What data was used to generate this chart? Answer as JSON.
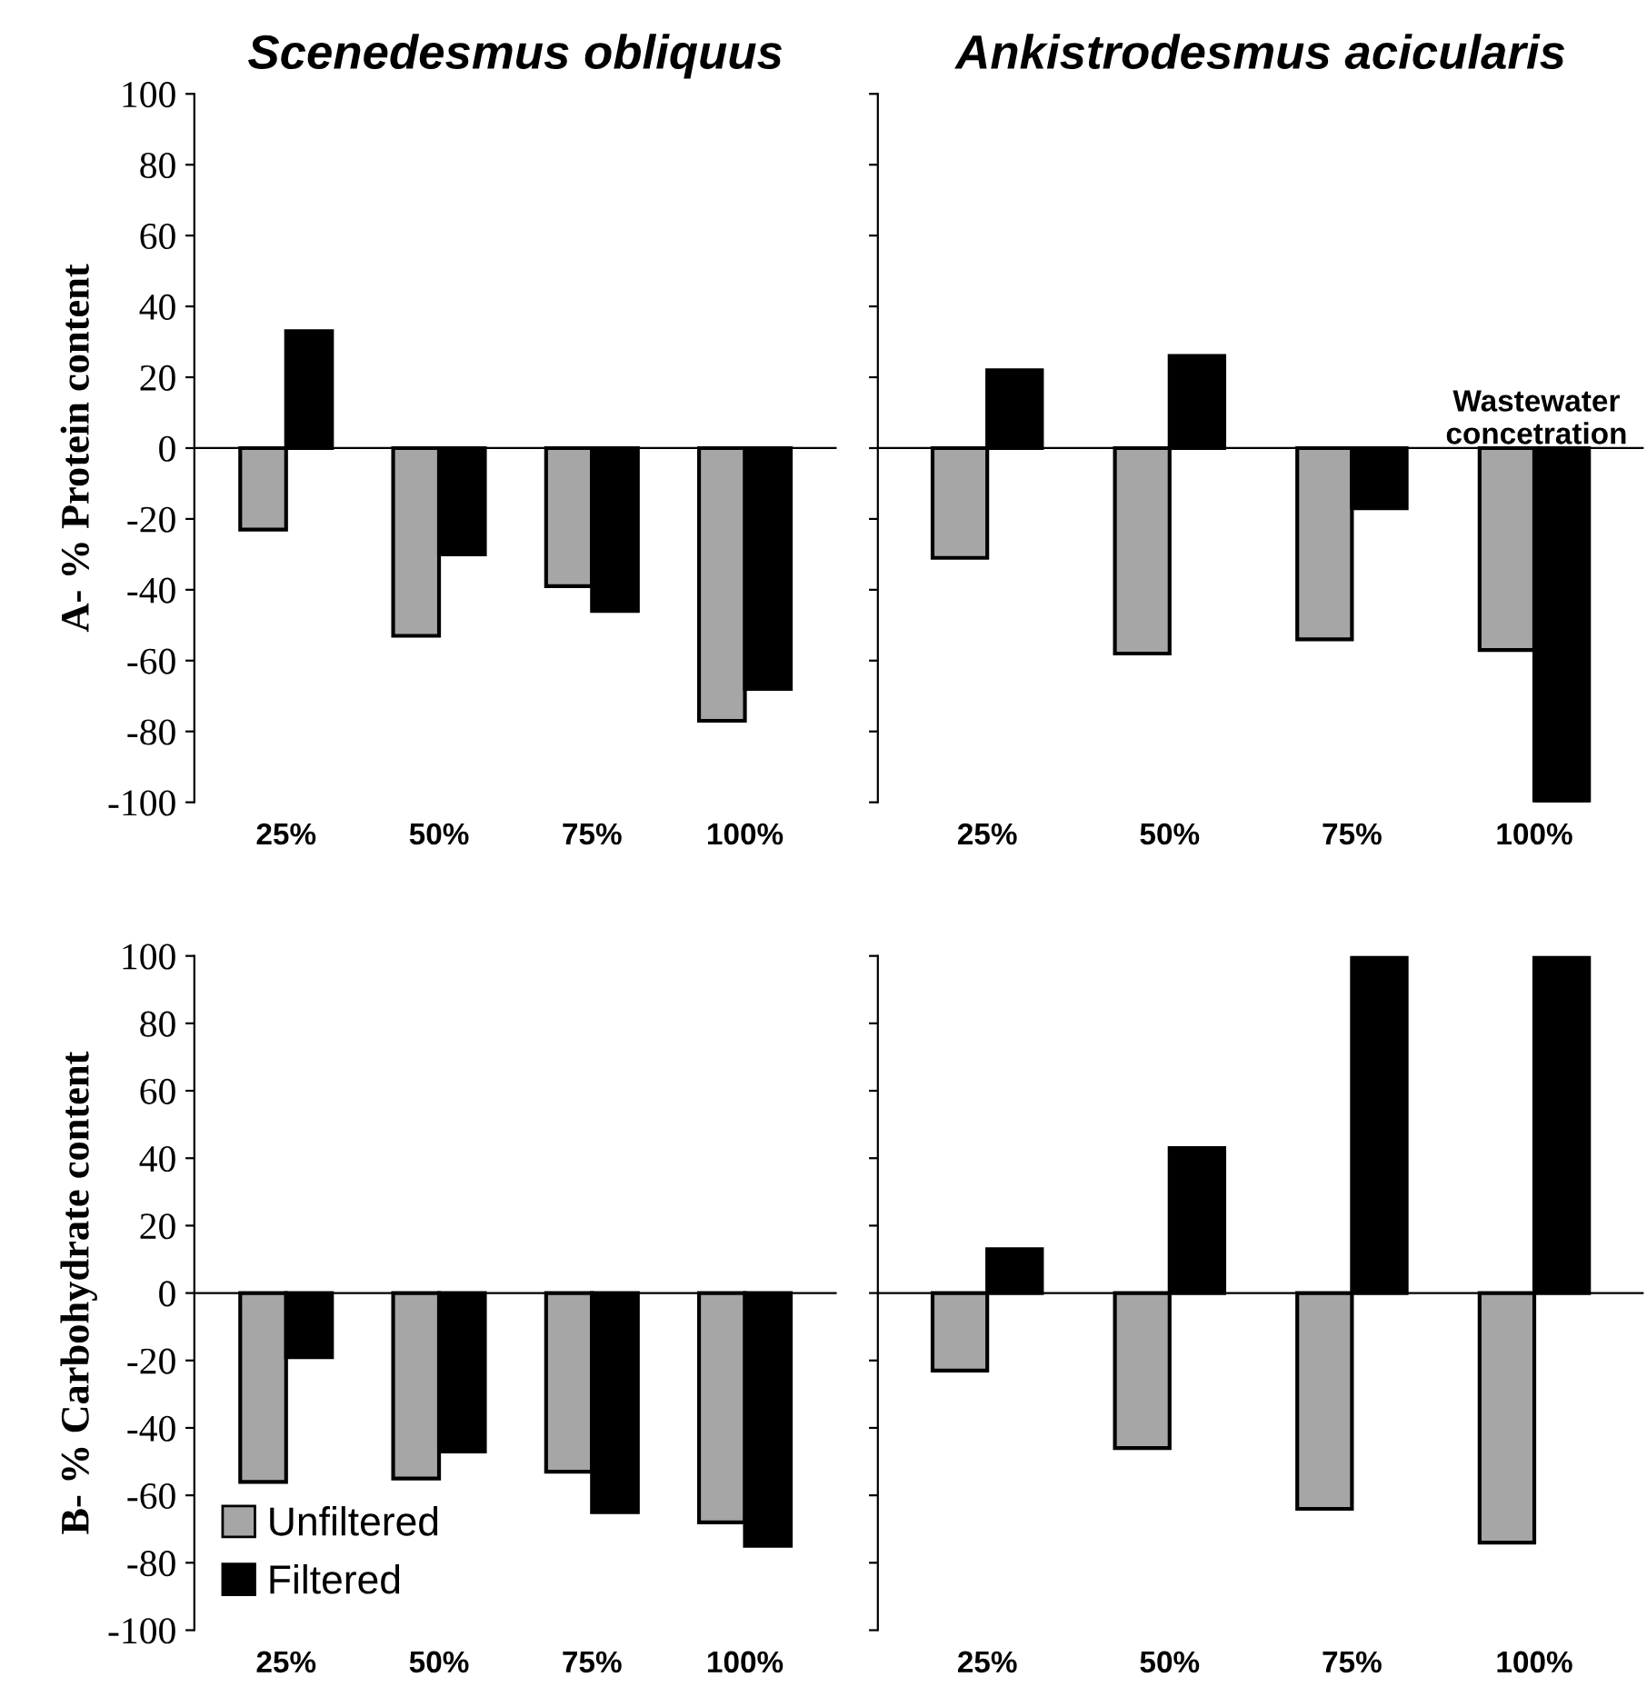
{
  "chart_data": [
    {
      "type": "bar",
      "title": "Scenedesmus obliquus",
      "ylabel": "A- % Protein content",
      "categories": [
        "25%",
        "50%",
        "75%",
        "100%"
      ],
      "ylim": [
        -100,
        100
      ],
      "yticks": [
        -100,
        -80,
        -60,
        -40,
        -20,
        0,
        20,
        40,
        60,
        80,
        100
      ],
      "legend": false,
      "series": [
        {
          "color": "#a6a6a6",
          "values": [
            -23,
            -53,
            -39,
            -77
          ]
        },
        {
          "color": "#000000",
          "values": [
            33,
            -30,
            -46,
            -68
          ]
        }
      ]
    },
    {
      "type": "bar",
      "title": "Ankistrodesmus acicularis",
      "categories": [
        "25%",
        "50%",
        "75%",
        "100%"
      ],
      "ylim": [
        -100,
        100
      ],
      "yticks": [
        {
          "value": -100,
          "label": null
        },
        {
          "value": -80,
          "label": null
        },
        {
          "value": -60,
          "label": null
        },
        {
          "value": -40,
          "label": null
        },
        {
          "value": -20,
          "label": null
        },
        {
          "value": 0,
          "label": null
        },
        {
          "value": 20,
          "label": null
        },
        {
          "value": 40,
          "label": null
        },
        {
          "value": 60,
          "label": null
        },
        {
          "value": 80,
          "label": null
        },
        {
          "value": 100,
          "label": null
        }
      ],
      "tick_labels": "x",
      "legend": false,
      "annotations": [
        "Wastewater\nconcetration"
      ],
      "series": [
        {
          "color": "#a6a6a6",
          "values": [
            -31,
            -58,
            -54,
            -57
          ]
        },
        {
          "color": "#000000",
          "values": [
            22,
            26,
            -17,
            -100
          ]
        }
      ]
    },
    {
      "type": "bar",
      "ylabel": "B- % Carbohydrate content",
      "categories": [
        "25%",
        "50%",
        "75%",
        "100%"
      ],
      "ylim": [
        -100,
        100
      ],
      "yticks": [
        -100,
        -80,
        -60,
        -40,
        -20,
        0,
        20,
        40,
        60,
        80,
        100
      ],
      "legend": "bottom left",
      "series": [
        {
          "name": "Unfiltered",
          "color": "#a6a6a6",
          "values": [
            -56,
            -55,
            -53,
            -68
          ]
        },
        {
          "name": "Filtered",
          "color": "#000000",
          "values": [
            -19,
            -47,
            -65,
            -75
          ]
        }
      ]
    },
    {
      "type": "bar",
      "categories": [
        "25%",
        "50%",
        "75%",
        "100%"
      ],
      "ylim": [
        -100,
        100
      ],
      "yticks": [
        {
          "value": -100,
          "label": null
        },
        {
          "value": -80,
          "label": null
        },
        {
          "value": -60,
          "label": null
        },
        {
          "value": -40,
          "label": null
        },
        {
          "value": -20,
          "label": null
        },
        {
          "value": 0,
          "label": null
        },
        {
          "value": 20,
          "label": null
        },
        {
          "value": 40,
          "label": null
        },
        {
          "value": 60,
          "label": null
        },
        {
          "value": 80,
          "label": null
        },
        {
          "value": 100,
          "label": null
        }
      ],
      "tick_labels": "x",
      "legend": false,
      "series": [
        {
          "color": "#a6a6a6",
          "values": [
            -23,
            -46,
            -64,
            -74
          ]
        },
        {
          "color": "#000000",
          "values": [
            13,
            43,
            100,
            100
          ]
        }
      ]
    }
  ]
}
